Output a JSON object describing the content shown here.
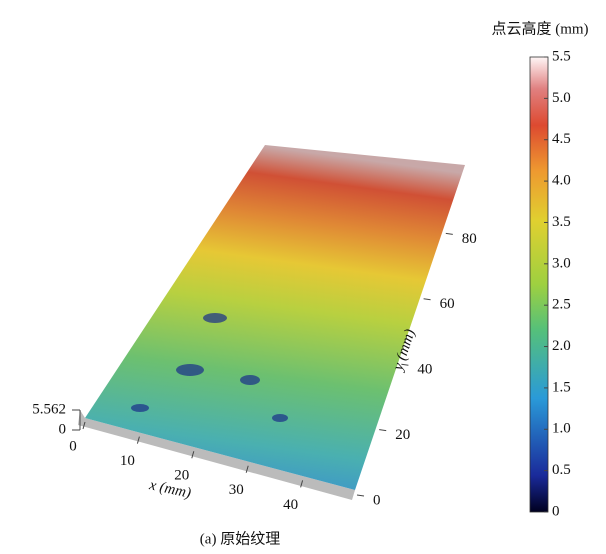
{
  "chart_data": {
    "type": "surface",
    "colorbar_label": "点云高度 (mm)",
    "caption": "(a) 原始纹理",
    "xlabel": "x (mm)",
    "ylabel": "y (mm)",
    "xlim": [
      0,
      50
    ],
    "xticks": [
      0,
      10,
      20,
      30,
      40
    ],
    "ylim": [
      0,
      100
    ],
    "yticks": [
      0,
      20,
      40,
      60,
      80
    ],
    "zlim": [
      0,
      5.562
    ],
    "zticks": [
      0,
      5.562
    ],
    "clim": [
      0,
      5.5
    ],
    "cticks": [
      0,
      0.5,
      {
        "value": 1,
        "label": "1.0"
      },
      1.5,
      {
        "value": 2,
        "label": "2.0"
      },
      2.5,
      {
        "value": 3,
        "label": "3.0"
      },
      3.5,
      {
        "value": 4,
        "label": "4.0"
      },
      4.5,
      {
        "value": 5,
        "label": "5.0"
      },
      5.5
    ]
  }
}
